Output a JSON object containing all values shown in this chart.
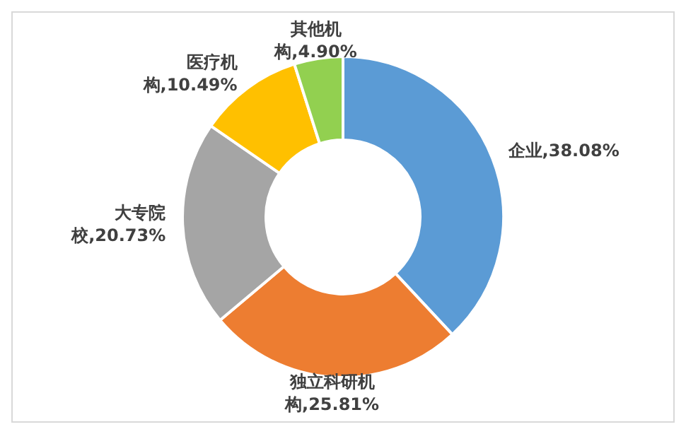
{
  "chart_data": {
    "type": "donut",
    "categories": [
      "企业",
      "独立科研机构",
      "大专院校",
      "医疗机构",
      "其他机构"
    ],
    "values": [
      38.08,
      25.81,
      20.73,
      10.49,
      4.9
    ],
    "value_labels": [
      ",38.08%",
      ",25.81%",
      ",20.73%",
      ",10.49%",
      ",4.90%"
    ],
    "colors": [
      "#5b9bd5",
      "#ed7d31",
      "#a5a5a5",
      "#ffc000",
      "#92d050"
    ],
    "legend": false
  }
}
